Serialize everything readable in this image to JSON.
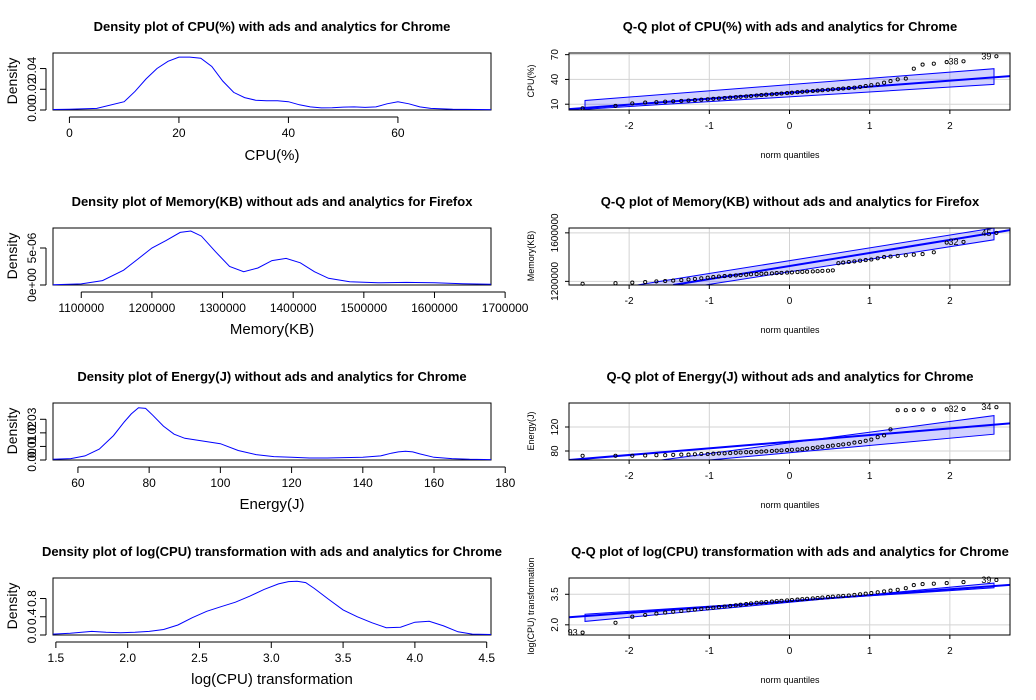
{
  "chart_data": [
    {
      "type": "area",
      "title": "Density plot of CPU(%) with ads and analytics for Chrome",
      "xlabel": "CPU(%)",
      "ylabel": "Density",
      "xlim": [
        -3,
        77
      ],
      "ylim": [
        0,
        0.055
      ],
      "xticks": [
        0,
        20,
        40,
        60
      ],
      "xtick_labels": [
        "0",
        "20",
        "40",
        "60"
      ],
      "yticks": [
        0.0,
        0.02,
        0.04
      ],
      "ytick_labels": [
        "0.00",
        "0.02",
        "0.04"
      ],
      "series_color": "#0000ff",
      "x": [
        -3,
        0,
        5,
        10,
        12,
        14,
        16,
        18,
        20,
        22,
        24,
        26,
        28,
        30,
        32,
        34,
        36,
        38,
        40,
        42,
        44,
        46,
        48,
        50,
        52,
        54,
        56,
        58,
        60,
        62,
        64,
        66,
        70,
        77
      ],
      "y": [
        0.0005,
        0.0007,
        0.0015,
        0.008,
        0.018,
        0.03,
        0.04,
        0.047,
        0.051,
        0.051,
        0.05,
        0.042,
        0.028,
        0.017,
        0.012,
        0.0095,
        0.009,
        0.009,
        0.008,
        0.005,
        0.003,
        0.002,
        0.0022,
        0.0028,
        0.003,
        0.0025,
        0.003,
        0.006,
        0.008,
        0.006,
        0.003,
        0.0015,
        0.0008,
        0.0004
      ]
    },
    {
      "type": "scatter",
      "title": "Q-Q plot of CPU(%) with ads and analytics for Chrome",
      "xlabel": "norm quantiles",
      "ylabel": "CPU(%)",
      "xlim": [
        -2.75,
        2.75
      ],
      "ylim": [
        3,
        72
      ],
      "xticks": [
        -2,
        -1,
        0,
        1,
        2
      ],
      "xtick_labels": [
        "-2",
        "-1",
        "0",
        "1",
        "2"
      ],
      "yticks": [
        10,
        40,
        70
      ],
      "ytick_labels": [
        "10",
        "40",
        "70"
      ],
      "line": [
        -2.75,
        4,
        2.75,
        44
      ],
      "band": [
        [
          -2.55,
          4,
          2.55,
          34
        ],
        [
          -2.55,
          14.5,
          2.55,
          53
        ]
      ],
      "points_x": [
        -2.58,
        -2.17,
        -1.96,
        -1.8,
        -1.66,
        -1.55,
        -1.45,
        -1.35,
        -1.26,
        -1.18,
        -1.1,
        -1.02,
        -0.95,
        -0.88,
        -0.81,
        -0.74,
        -0.67,
        -0.61,
        -0.54,
        -0.48,
        -0.41,
        -0.35,
        -0.29,
        -0.22,
        -0.16,
        -0.1,
        -0.03,
        0.03,
        0.1,
        0.16,
        0.22,
        0.29,
        0.35,
        0.41,
        0.48,
        0.54,
        0.61,
        0.67,
        0.74,
        0.81,
        0.88,
        0.95,
        1.02,
        1.1,
        1.18,
        1.26,
        1.35,
        1.45,
        1.55,
        1.66,
        1.8,
        1.96,
        2.17,
        2.58
      ],
      "points_y": [
        5,
        8,
        11,
        12,
        12.5,
        13,
        13.5,
        14,
        14.5,
        15,
        15.5,
        16,
        16.5,
        17,
        17.5,
        18,
        18.5,
        19,
        19.5,
        20,
        20.5,
        21,
        21.5,
        22,
        22.5,
        23,
        23.5,
        24,
        24.5,
        25,
        25.5,
        26,
        26.5,
        27,
        27.5,
        28,
        28.5,
        29,
        29.5,
        30,
        31,
        32,
        33,
        34,
        36,
        38,
        40,
        41,
        53,
        58,
        59,
        61,
        62,
        68
      ],
      "point_labels": [
        {
          "text": "38",
          "x": 2.17,
          "y": 62
        },
        {
          "text": "39",
          "x": 2.58,
          "y": 68
        }
      ]
    },
    {
      "type": "area",
      "title": "Density plot of Memory(KB) without ads and analytics for Firefox",
      "xlabel": "Memory(KB)",
      "ylabel": "Density",
      "xlim": [
        1060000,
        1680000
      ],
      "ylim": [
        0,
        7.7e-06
      ],
      "xticks": [
        1100000,
        1200000,
        1300000,
        1400000,
        1500000,
        1600000,
        1700000
      ],
      "xtick_labels": [
        "1100000",
        "1200000",
        "1300000",
        "1400000",
        "1500000",
        "1600000",
        "1700000"
      ],
      "yticks": [
        0,
        5e-06
      ],
      "ytick_labels": [
        "0e+00",
        "5e-06"
      ],
      "series_color": "#0000ff",
      "x": [
        1060000,
        1100000,
        1130000,
        1160000,
        1180000,
        1200000,
        1220000,
        1240000,
        1255000,
        1270000,
        1290000,
        1310000,
        1330000,
        1350000,
        1370000,
        1390000,
        1410000,
        1430000,
        1450000,
        1480000,
        1520000,
        1560000,
        1600000,
        1640000,
        1680000
      ],
      "y": [
        4e-08,
        1.5e-07,
        6e-07,
        2e-06,
        3.5e-06,
        5e-06,
        6e-06,
        7.1e-06,
        7.3e-06,
        6.6e-06,
        4.5e-06,
        2.5e-06,
        1.8e-06,
        2.3e-06,
        3.3e-06,
        3.6e-06,
        3e-06,
        1.8e-06,
        9e-07,
        4.5e-07,
        3e-07,
        3.5e-07,
        3e-07,
        1.8e-07,
        1e-07
      ]
    },
    {
      "type": "scatter",
      "title": "Q-Q plot of Memory(KB) without ads and analytics for Firefox",
      "xlabel": "norm quantiles",
      "ylabel": "Memory(KB)",
      "xlim": [
        -2.75,
        2.75
      ],
      "ylim": [
        1170000,
        1640000
      ],
      "xticks": [
        -2,
        -1,
        0,
        1,
        2
      ],
      "xtick_labels": [
        "-2",
        "-1",
        "0",
        "1",
        "2"
      ],
      "yticks": [
        1200000,
        1600000
      ],
      "ytick_labels": [
        "1200000",
        "1600000"
      ],
      "line": [
        -1.45,
        1170000,
        2.75,
        1623000
      ],
      "band": [
        [
          -1.05,
          1170000,
          2.55,
          1543000
        ],
        [
          -1.9,
          1170000,
          2.55,
          1640000
        ]
      ],
      "points_x": [
        -2.58,
        -2.17,
        -1.96,
        -1.8,
        -1.66,
        -1.55,
        -1.45,
        -1.35,
        -1.26,
        -1.18,
        -1.1,
        -1.02,
        -0.95,
        -0.88,
        -0.81,
        -0.74,
        -0.67,
        -0.61,
        -0.54,
        -0.48,
        -0.41,
        -0.35,
        -0.29,
        -0.22,
        -0.16,
        -0.1,
        -0.03,
        0.03,
        0.1,
        0.16,
        0.22,
        0.29,
        0.35,
        0.41,
        0.48,
        0.54,
        0.61,
        0.67,
        0.74,
        0.81,
        0.88,
        0.95,
        1.02,
        1.1,
        1.18,
        1.26,
        1.35,
        1.45,
        1.55,
        1.66,
        1.8,
        1.96,
        2.17,
        2.58
      ],
      "points_y": [
        1180000,
        1185000,
        1190000,
        1195000,
        1200000,
        1203000,
        1206000,
        1210000,
        1215000,
        1220000,
        1225000,
        1230000,
        1235000,
        1240000,
        1243000,
        1246000,
        1249000,
        1252000,
        1255000,
        1258000,
        1260000,
        1262000,
        1264000,
        1266000,
        1268000,
        1270000,
        1272000,
        1274000,
        1276000,
        1278000,
        1280000,
        1282000,
        1284000,
        1286000,
        1288000,
        1290000,
        1350000,
        1355000,
        1360000,
        1365000,
        1370000,
        1375000,
        1380000,
        1390000,
        1400000,
        1405000,
        1410000,
        1415000,
        1420000,
        1425000,
        1440000,
        1520000,
        1525000,
        1600000
      ],
      "point_labels": [
        {
          "text": "32",
          "x": 2.17,
          "y": 1525000
        },
        {
          "text": "45",
          "x": 2.58,
          "y": 1600000
        }
      ]
    },
    {
      "type": "area",
      "title": "Density plot of Energy(J) without ads and analytics for Chrome",
      "xlabel": "Energy(J)",
      "ylabel": "Density",
      "xlim": [
        53,
        176
      ],
      "ylim": [
        0,
        0.042
      ],
      "xticks": [
        60,
        80,
        100,
        120,
        140,
        160,
        180
      ],
      "xtick_labels": [
        "60",
        "80",
        "100",
        "120",
        "140",
        "160",
        "180"
      ],
      "yticks": [
        0.0,
        0.01,
        0.02,
        0.03
      ],
      "ytick_labels": [
        "0.00",
        "0.01",
        "0.02",
        "0.03"
      ],
      "series_color": "#0000ff",
      "x": [
        53,
        58,
        62,
        66,
        70,
        73,
        75,
        77,
        79,
        81,
        84,
        87,
        90,
        95,
        100,
        105,
        110,
        115,
        120,
        125,
        130,
        135,
        140,
        145,
        148,
        150,
        152,
        154,
        156,
        160,
        165,
        170,
        176
      ],
      "y": [
        0.0005,
        0.001,
        0.003,
        0.008,
        0.018,
        0.028,
        0.034,
        0.0385,
        0.038,
        0.033,
        0.025,
        0.019,
        0.016,
        0.014,
        0.012,
        0.007,
        0.004,
        0.0025,
        0.002,
        0.0015,
        0.0015,
        0.0018,
        0.002,
        0.003,
        0.005,
        0.006,
        0.0065,
        0.006,
        0.0045,
        0.002,
        0.001,
        0.0005,
        0.0003
      ]
    },
    {
      "type": "scatter",
      "title": "Q-Q plot of Energy(J) without ads and analytics for Chrome",
      "xlabel": "norm quantiles",
      "ylabel": "Energy(J)",
      "xlim": [
        -2.75,
        2.75
      ],
      "ylim": [
        65,
        160
      ],
      "xticks": [
        -2,
        -1,
        0,
        1,
        2
      ],
      "xtick_labels": [
        "-2",
        "-1",
        "0",
        "1",
        "2"
      ],
      "yticks": [
        80,
        120
      ],
      "ytick_labels": [
        "80",
        "120"
      ],
      "line": [
        -2.75,
        65,
        2.75,
        126
      ],
      "band": [
        [
          -1.0,
          65,
          2.55,
          108
        ],
        [
          -1.6,
          65,
          2.55,
          139
        ]
      ],
      "points_x": [
        -2.58,
        -2.17,
        -1.96,
        -1.8,
        -1.66,
        -1.55,
        -1.45,
        -1.35,
        -1.26,
        -1.18,
        -1.1,
        -1.02,
        -0.95,
        -0.88,
        -0.81,
        -0.74,
        -0.67,
        -0.61,
        -0.54,
        -0.48,
        -0.41,
        -0.35,
        -0.29,
        -0.22,
        -0.16,
        -0.1,
        -0.03,
        0.03,
        0.1,
        0.16,
        0.22,
        0.29,
        0.35,
        0.41,
        0.48,
        0.54,
        0.61,
        0.67,
        0.74,
        0.81,
        0.88,
        0.95,
        1.02,
        1.1,
        1.18,
        1.26,
        1.35,
        1.45,
        1.55,
        1.66,
        1.8,
        1.96,
        2.17,
        2.58
      ],
      "points_y": [
        72,
        72,
        72,
        72.5,
        73,
        73,
        73.5,
        74,
        74,
        74.5,
        75,
        75,
        75.5,
        76,
        76,
        76.5,
        77,
        77.5,
        78,
        78,
        78.5,
        79,
        79.5,
        80,
        80.5,
        81,
        81.5,
        82,
        82.5,
        83,
        84,
        85,
        86,
        87,
        88,
        89,
        90,
        91,
        92,
        94,
        95,
        97,
        99,
        103,
        106,
        116,
        148,
        148,
        148.5,
        149,
        149,
        149.5,
        150,
        153
      ],
      "point_labels": [
        {
          "text": "32",
          "x": 2.17,
          "y": 150
        },
        {
          "text": "34",
          "x": 2.58,
          "y": 153
        }
      ]
    },
    {
      "type": "area",
      "title": "Density plot of log(CPU) transformation with ads and analytics for Chrome",
      "xlabel": "log(CPU) transformation",
      "ylabel": "Density",
      "xlim": [
        1.48,
        4.53
      ],
      "ylim": [
        0,
        1.25
      ],
      "xticks": [
        1.5,
        2.0,
        2.5,
        3.0,
        3.5,
        4.0,
        4.5
      ],
      "xtick_labels": [
        "1.5",
        "2.0",
        "2.5",
        "3.0",
        "3.5",
        "4.0",
        "4.5"
      ],
      "yticks": [
        0.0,
        0.4,
        0.8
      ],
      "ytick_labels": [
        "0.0",
        "0.4",
        "0.8"
      ],
      "series_color": "#0000ff",
      "x": [
        1.48,
        1.6,
        1.75,
        1.85,
        1.95,
        2.05,
        2.15,
        2.25,
        2.35,
        2.45,
        2.55,
        2.65,
        2.75,
        2.85,
        2.95,
        3.05,
        3.12,
        3.18,
        3.24,
        3.3,
        3.4,
        3.5,
        3.6,
        3.7,
        3.8,
        3.9,
        4.0,
        4.1,
        4.2,
        4.3,
        4.4,
        4.53
      ],
      "y": [
        0.02,
        0.04,
        0.08,
        0.06,
        0.05,
        0.06,
        0.08,
        0.12,
        0.22,
        0.38,
        0.52,
        0.62,
        0.72,
        0.85,
        1.0,
        1.12,
        1.17,
        1.18,
        1.15,
        1.02,
        0.78,
        0.55,
        0.4,
        0.27,
        0.16,
        0.17,
        0.28,
        0.3,
        0.2,
        0.07,
        0.02,
        0.01
      ]
    },
    {
      "type": "scatter",
      "title": "Q-Q plot of log(CPU) transformation with ads and analytics for Chrome",
      "xlabel": "norm quantiles",
      "ylabel": "log(CPU) transformation",
      "xlim": [
        -2.75,
        2.75
      ],
      "ylim": [
        1.5,
        4.3
      ],
      "xticks": [
        -2,
        -1,
        0,
        1,
        2
      ],
      "xtick_labels": [
        "-2",
        "-1",
        "0",
        "1",
        "2"
      ],
      "yticks": [
        2.0,
        3.5
      ],
      "ytick_labels": [
        "2.0",
        "3.5"
      ],
      "line": [
        -2.75,
        2.37,
        2.75,
        3.96
      ],
      "band": [
        [
          -2.55,
          2.52,
          2.55,
          3.82
        ],
        [
          -2.55,
          2.17,
          2.55,
          4.05
        ]
      ],
      "points_x": [
        -2.58,
        -2.17,
        -1.96,
        -1.8,
        -1.66,
        -1.55,
        -1.45,
        -1.35,
        -1.26,
        -1.18,
        -1.1,
        -1.02,
        -0.95,
        -0.88,
        -0.81,
        -0.74,
        -0.67,
        -0.61,
        -0.54,
        -0.48,
        -0.41,
        -0.35,
        -0.29,
        -0.22,
        -0.16,
        -0.1,
        -0.03,
        0.03,
        0.1,
        0.16,
        0.22,
        0.29,
        0.35,
        0.41,
        0.48,
        0.54,
        0.61,
        0.67,
        0.74,
        0.81,
        0.88,
        0.95,
        1.02,
        1.1,
        1.18,
        1.26,
        1.35,
        1.45,
        1.55,
        1.66,
        1.8,
        1.96,
        2.17,
        2.58
      ],
      "points_y": [
        1.62,
        2.1,
        2.4,
        2.48,
        2.55,
        2.6,
        2.64,
        2.68,
        2.72,
        2.75,
        2.78,
        2.81,
        2.84,
        2.87,
        2.9,
        2.93,
        2.96,
        2.99,
        3.02,
        3.05,
        3.08,
        3.1,
        3.12,
        3.14,
        3.16,
        3.18,
        3.2,
        3.22,
        3.24,
        3.26,
        3.28,
        3.3,
        3.32,
        3.34,
        3.36,
        3.38,
        3.4,
        3.42,
        3.44,
        3.47,
        3.5,
        3.53,
        3.56,
        3.6,
        3.64,
        3.68,
        3.72,
        3.8,
        3.95,
        4.0,
        4.02,
        4.05,
        4.1,
        4.2
      ],
      "point_labels": [
        {
          "text": "93",
          "x": -2.58,
          "y": 1.62
        },
        {
          "text": "39",
          "x": 2.58,
          "y": 4.2
        }
      ]
    }
  ]
}
